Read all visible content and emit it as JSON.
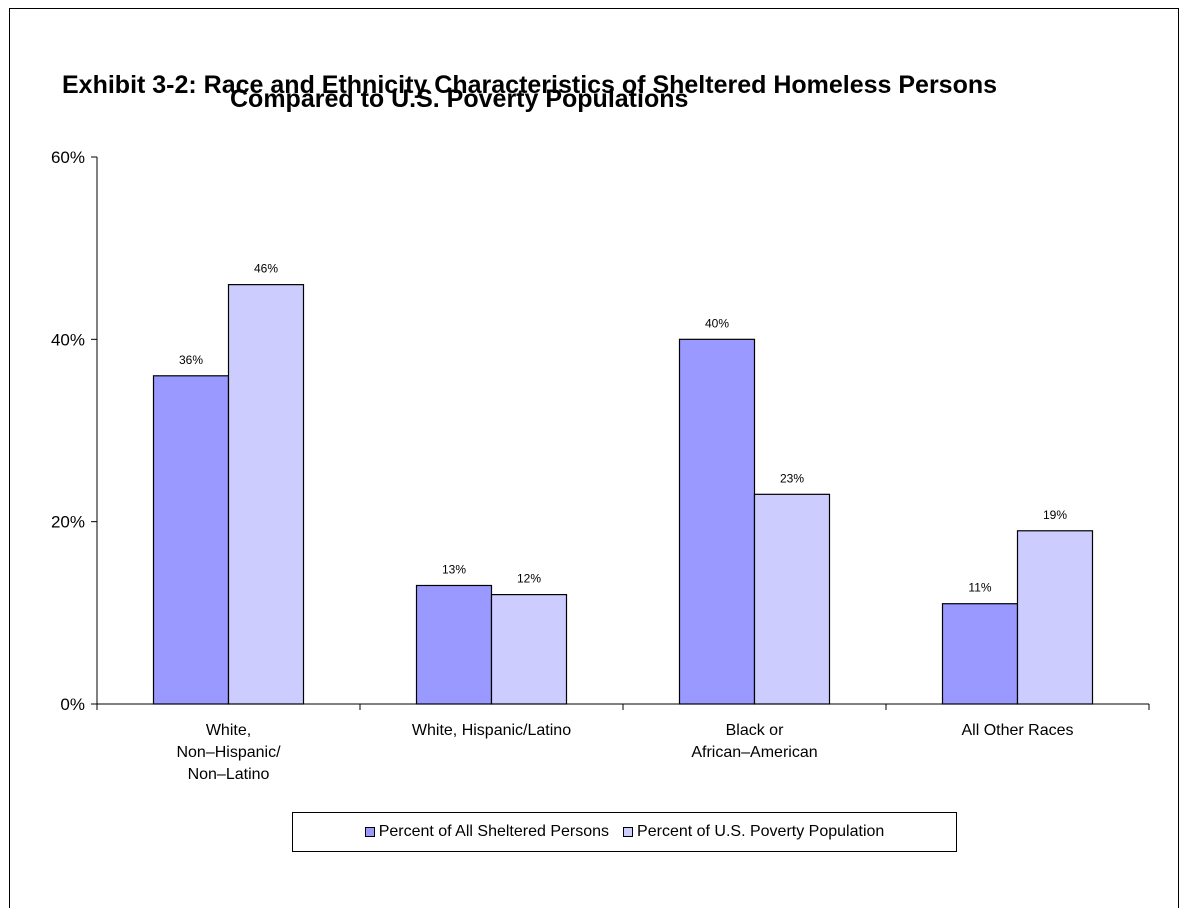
{
  "title_line1": "Exhibit 3-2:  Race and Ethnicity Characteristics of Sheltered Homeless Persons",
  "title_line2": "Compared to U.S. Poverty Populations",
  "chart_data": {
    "type": "bar",
    "categories": [
      "White,\nNon–Hispanic/\nNon–Latino",
      "White, Hispanic/Latino",
      "Black or\nAfrican–American",
      "All Other Races"
    ],
    "series": [
      {
        "name": "Percent of All Sheltered Persons",
        "values": [
          36,
          13,
          40,
          11
        ],
        "labels": [
          "36%",
          "13%",
          "40%",
          "11%"
        ],
        "color": "#9999ff"
      },
      {
        "name": "Percent of U.S. Poverty Population",
        "values": [
          46,
          12,
          23,
          19
        ],
        "labels": [
          "46%",
          "12%",
          "23%",
          "19%"
        ],
        "color": "#ccccff"
      }
    ],
    "ylim": [
      0,
      60
    ],
    "yticks": [
      0,
      20,
      40,
      60
    ],
    "ytick_labels": [
      "0%",
      "20%",
      "40%",
      "60%"
    ],
    "legend_position": "bottom",
    "grid": false
  }
}
